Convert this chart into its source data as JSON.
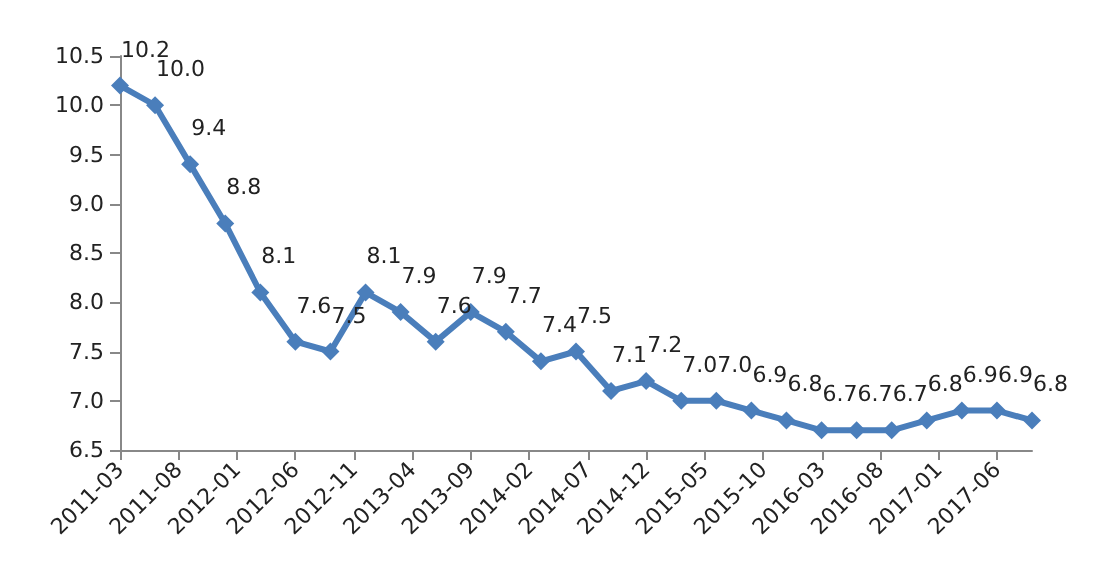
{
  "chart_data": {
    "type": "line",
    "x": [
      "2011-03",
      "2011-06",
      "2011-09",
      "2011-12",
      "2012-03",
      "2012-06",
      "2012-09",
      "2012-12",
      "2013-03",
      "2013-06",
      "2013-09",
      "2013-12",
      "2014-03",
      "2014-06",
      "2014-09",
      "2014-12",
      "2015-03",
      "2015-06",
      "2015-09",
      "2015-12",
      "2016-03",
      "2016-06",
      "2016-09",
      "2016-12",
      "2017-03",
      "2017-06",
      "2017-09"
    ],
    "series": [
      {
        "color": "#4a7ebb",
        "values": [
          10.2,
          10.0,
          9.4,
          8.8,
          8.1,
          7.6,
          7.5,
          8.1,
          7.9,
          7.6,
          7.9,
          7.7,
          7.4,
          7.5,
          7.1,
          7.2,
          7.0,
          7.0,
          6.9,
          6.8,
          6.7,
          6.7,
          6.7,
          6.8,
          6.9,
          6.9,
          6.8
        ]
      }
    ],
    "value_labels": [
      "10.2",
      "10.0",
      "9.4",
      "8.8",
      "8.1",
      "7.6",
      "7.5",
      "8.1",
      "7.9",
      "7.6",
      "7.9",
      "7.7",
      "7.4",
      "7.5",
      "7.1",
      "7.2",
      "7.0",
      "7.0",
      "6.9",
      "6.8",
      "6.7",
      "6.7",
      "6.7",
      "6.8",
      "6.9",
      "6.9",
      "6.8"
    ],
    "xlim": [
      "2011-03",
      "2017-09"
    ],
    "xticks": [
      "2011-03",
      "2011-08",
      "2012-01",
      "2012-06",
      "2012-11",
      "2013-04",
      "2013-09",
      "2014-02",
      "2014-07",
      "2014-12",
      "2015-05",
      "2015-10",
      "2016-03",
      "2016-08",
      "2017-01",
      "2017-06"
    ],
    "ylim": [
      6.5,
      10.5
    ],
    "yticks": [
      6.5,
      {
        "value": 7,
        "label": "7.0"
      },
      7.5,
      {
        "value": 8,
        "label": "8.0"
      },
      8.5,
      {
        "value": 9,
        "label": "9.0"
      },
      9.5,
      {
        "value": 10,
        "label": "10.0"
      },
      10.5
    ],
    "grid": false,
    "marker": "diamond",
    "line_style": "solid"
  }
}
